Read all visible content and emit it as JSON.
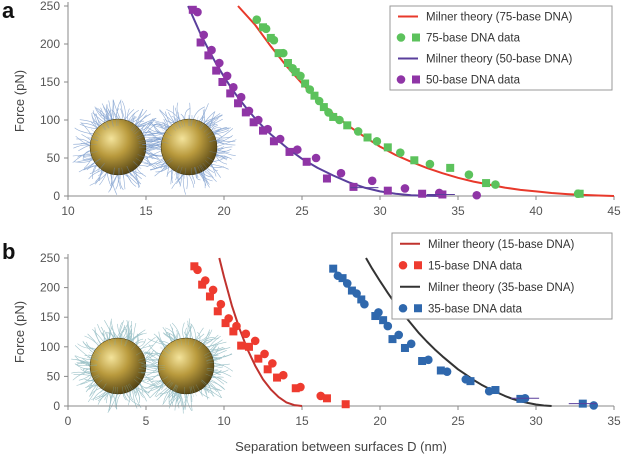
{
  "chart_data": [
    {
      "type": "scatter",
      "panel_label": "a",
      "xlabel": "",
      "ylabel": "Force (pN)",
      "xlim": [
        10,
        45
      ],
      "ylim": [
        0,
        250
      ],
      "xticks": [
        10,
        15,
        20,
        25,
        30,
        35,
        40,
        45
      ],
      "yticks": [
        0,
        50,
        100,
        150,
        200,
        250
      ],
      "grid": false,
      "legend_position": "top-right",
      "legend": [
        {
          "label": "Milner theory (75-base DNA)",
          "kind": "line",
          "color": "#e8392b"
        },
        {
          "label": "75-base DNA data",
          "kind": "markers",
          "color": "#5cc25c"
        },
        {
          "label": "Milner theory (50-base DNA)",
          "kind": "line",
          "color": "#5a3f9c"
        },
        {
          "label": "50-base DNA data",
          "kind": "markers",
          "color": "#8f35a6"
        }
      ],
      "series": [
        {
          "name": "Milner theory (75-base DNA)",
          "kind": "line",
          "color": "#e8392b",
          "x": [
            20.9,
            22,
            23,
            24,
            25,
            26,
            27,
            28,
            29,
            30,
            31,
            32,
            33,
            34,
            35,
            36,
            37,
            38,
            39,
            40,
            41,
            42,
            43,
            44,
            45
          ],
          "y": [
            250,
            225,
            197,
            171,
            148,
            127,
            108,
            92,
            78,
            65,
            54,
            45,
            37,
            30,
            24,
            19,
            15,
            11,
            8,
            6,
            4,
            2.5,
            1.5,
            0.6,
            0
          ]
        },
        {
          "name": "75-base DNA data",
          "kind": "circle",
          "color": "#5cc25c",
          "x": [
            22.1,
            22.7,
            23.2,
            23.8,
            24.4,
            24.9,
            25.5,
            26.1,
            26.7,
            27.4,
            28.6,
            29.8,
            31.3,
            33.2,
            35.7,
            37.4,
            42.7
          ],
          "y": [
            232,
            220,
            205,
            188,
            168,
            158,
            140,
            125,
            110,
            100,
            85,
            72,
            57,
            42,
            28,
            15,
            3
          ]
        },
        {
          "name": "75-base DNA data",
          "kind": "square",
          "color": "#5cc25c",
          "x": [
            22.5,
            23.0,
            23.5,
            24.1,
            24.6,
            25.2,
            25.8,
            26.4,
            27.0,
            27.9,
            29.2,
            30.5,
            32.2,
            34.5,
            36.8,
            42.8
          ],
          "y": [
            222,
            208,
            188,
            175,
            163,
            148,
            132,
            117,
            104,
            93,
            77,
            64,
            47,
            37,
            17,
            3
          ]
        },
        {
          "name": "Milner theory (50-base DNA)",
          "kind": "line",
          "color": "#5a3f9c",
          "x": [
            17.7,
            18.5,
            19,
            19.5,
            20,
            20.5,
            21,
            21.5,
            22,
            22.5,
            23,
            24,
            25,
            26,
            27,
            28,
            29,
            30,
            31,
            32,
            33,
            34
          ],
          "y": [
            250,
            213,
            193,
            174,
            157,
            141,
            127,
            114,
            102,
            91,
            81,
            64,
            49,
            37,
            27,
            18,
            11,
            6,
            3,
            1,
            0.3,
            0
          ]
        },
        {
          "name": "50-base DNA data",
          "kind": "circle",
          "color": "#8f35a6",
          "x": [
            18.3,
            18.7,
            19.2,
            19.7,
            20.2,
            20.6,
            21.1,
            21.6,
            22.2,
            22.8,
            23.6,
            24.7,
            25.9,
            27.5,
            29.5,
            31.6,
            33.8,
            36.2
          ],
          "y": [
            242,
            212,
            192,
            175,
            158,
            143,
            130,
            112,
            100,
            88,
            75,
            61,
            50,
            30,
            20,
            10,
            4,
            1
          ]
        },
        {
          "name": "50-base DNA data",
          "kind": "square",
          "color": "#8f35a6",
          "x": [
            18.0,
            18.5,
            19.0,
            19.5,
            19.9,
            20.4,
            20.9,
            21.4,
            21.9,
            22.5,
            23.2,
            24.2,
            25.3,
            26.6,
            28.3,
            30.5,
            32.7,
            34.0
          ],
          "y": [
            245,
            202,
            185,
            165,
            150,
            135,
            122,
            110,
            97,
            86,
            72,
            58,
            45,
            23,
            12,
            7,
            3,
            2
          ]
        }
      ]
    },
    {
      "type": "scatter",
      "panel_label": "b",
      "xlabel": "Separation between surfaces D (nm)",
      "ylabel": "Force (pN)",
      "xlim": [
        0,
        35
      ],
      "ylim": [
        0,
        250
      ],
      "xticks": [
        0,
        5,
        10,
        15,
        20,
        25,
        30,
        35
      ],
      "yticks": [
        0,
        50,
        100,
        150,
        200,
        250
      ],
      "grid": false,
      "legend_position": "top-right",
      "legend": [
        {
          "label": "Milner theory (15-base DNA)",
          "kind": "line",
          "color": "#c0322e"
        },
        {
          "label": "15-base DNA data",
          "kind": "markers",
          "color": "#ee3b2f"
        },
        {
          "label": "Milner theory (35-base DNA)",
          "kind": "line",
          "color": "#333333"
        },
        {
          "label": "35-base DNA data",
          "kind": "markers",
          "color": "#2f68ad"
        }
      ],
      "series": [
        {
          "name": "Milner theory (15-base DNA)",
          "kind": "line",
          "color": "#c0322e",
          "x": [
            9.7,
            10,
            10.5,
            11,
            11.5,
            12,
            12.5,
            13,
            13.5,
            14,
            14.5,
            15
          ],
          "y": [
            250,
            218,
            170,
            130,
            96,
            68,
            45,
            28,
            15,
            6,
            1.5,
            0
          ]
        },
        {
          "name": "15-base DNA data",
          "kind": "circle",
          "color": "#ee3b2f",
          "x": [
            8.3,
            8.8,
            9.3,
            9.8,
            10.3,
            10.8,
            11.4,
            12.0,
            12.6,
            13.1,
            13.8,
            14.9,
            16.2
          ],
          "y": [
            230,
            212,
            196,
            172,
            148,
            135,
            122,
            110,
            88,
            72,
            52,
            32,
            17
          ]
        },
        {
          "name": "15-base DNA data",
          "kind": "square",
          "color": "#ee3b2f",
          "x": [
            8.1,
            8.6,
            9.1,
            9.6,
            10.1,
            10.6,
            11.1,
            11.6,
            12.2,
            12.8,
            13.4,
            14.6,
            16.6,
            17.8
          ],
          "y": [
            236,
            205,
            185,
            160,
            140,
            126,
            102,
            100,
            80,
            62,
            48,
            30,
            13,
            3
          ]
        },
        {
          "name": "Milner theory (35-base DNA)",
          "kind": "line",
          "color": "#333333",
          "x": [
            19.1,
            19.5,
            20,
            20.5,
            21,
            21.5,
            22,
            22.5,
            23,
            23.5,
            24,
            24.5,
            25,
            25.5,
            26,
            26.5,
            27,
            27.5,
            28,
            28.5,
            29,
            29.5,
            30,
            30.5,
            31
          ],
          "y": [
            250,
            232,
            211,
            191,
            172,
            155,
            139,
            123,
            109,
            96,
            84,
            73,
            62,
            53,
            44,
            36,
            29,
            23,
            17,
            12,
            8,
            5,
            2.5,
            0.8,
            0
          ]
        },
        {
          "name": "35-base DNA data",
          "kind": "circle",
          "color": "#2f68ad",
          "x": [
            17.3,
            17.9,
            18.5,
            19.0,
            19.9,
            20.5,
            21.2,
            22.0,
            23.1,
            24.3,
            25.5,
            27.0,
            29.3,
            33.7
          ],
          "y": [
            220,
            207,
            190,
            172,
            158,
            135,
            120,
            105,
            78,
            58,
            45,
            25,
            13,
            1
          ]
        },
        {
          "name": "35-base DNA data",
          "kind": "square",
          "color": "#2f68ad",
          "x": [
            17.0,
            17.6,
            18.2,
            18.8,
            19.7,
            20.2,
            20.8,
            21.6,
            22.7,
            23.9,
            25.8,
            27.4,
            29.0,
            33.0
          ],
          "y": [
            232,
            216,
            195,
            180,
            152,
            145,
            113,
            98,
            76,
            60,
            42,
            27,
            12,
            4
          ]
        }
      ]
    }
  ]
}
